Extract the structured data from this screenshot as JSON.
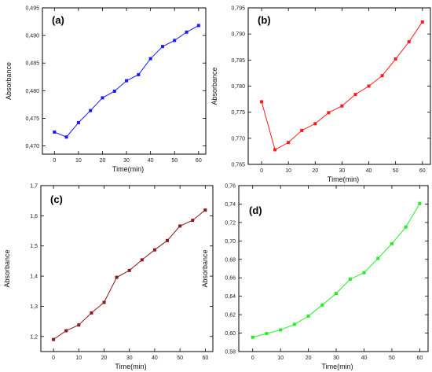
{
  "chart_data": [
    {
      "type": "line",
      "panel_label": "(a)",
      "xlabel": "Time(min)",
      "ylabel": "Absorbance",
      "xlim": [
        -5,
        63
      ],
      "ylim": [
        0.4685,
        0.495
      ],
      "xticks": [
        0,
        10,
        20,
        30,
        40,
        50,
        60
      ],
      "xtick_labels": [
        "0",
        "10",
        "20",
        "30",
        "40",
        "50",
        "60"
      ],
      "yticks": [
        0.47,
        0.475,
        0.48,
        0.485,
        0.49,
        0.495
      ],
      "ytick_labels": [
        "0,470",
        "0,475",
        "0,480",
        "0,485",
        "0,490",
        "0,495"
      ],
      "color": "#1a1aff",
      "series": [
        {
          "x": [
            0,
            5,
            10,
            15,
            20,
            25,
            30,
            35,
            40,
            45,
            50,
            55,
            60
          ],
          "y": [
            0.4725,
            0.4716,
            0.4742,
            0.4764,
            0.4787,
            0.4799,
            0.4818,
            0.4829,
            0.4858,
            0.488,
            0.4891,
            0.4906,
            0.4918
          ]
        }
      ]
    },
    {
      "type": "line",
      "panel_label": "(b)",
      "xlabel": "Time(min)",
      "ylabel": "Absorbance",
      "xlim": [
        -5,
        63
      ],
      "ylim": [
        0.765,
        0.795
      ],
      "xticks": [
        0,
        10,
        20,
        30,
        40,
        50,
        60
      ],
      "xtick_labels": [
        "0",
        "10",
        "20",
        "30",
        "40",
        "50",
        "60"
      ],
      "yticks": [
        0.765,
        0.77,
        0.775,
        0.78,
        0.785,
        0.79,
        0.795
      ],
      "ytick_labels": [
        "0,765",
        "0,770",
        "0,775",
        "0,780",
        "0,785",
        "0,790",
        "0,795"
      ],
      "color": "#ff1a1a",
      "series": [
        {
          "x": [
            0,
            5,
            10,
            15,
            20,
            25,
            30,
            35,
            40,
            45,
            50,
            55,
            60
          ],
          "y": [
            0.777,
            0.7678,
            0.7692,
            0.7715,
            0.7728,
            0.7749,
            0.7762,
            0.7784,
            0.78,
            0.782,
            0.7852,
            0.7885,
            0.7923
          ]
        }
      ]
    },
    {
      "type": "line",
      "panel_label": "(c)",
      "xlabel": "Time(min)",
      "ylabel": "Absorbance",
      "xlim": [
        -5,
        63
      ],
      "ylim": [
        1.15,
        1.7
      ],
      "xticks": [
        0,
        10,
        20,
        30,
        40,
        50,
        60
      ],
      "xtick_labels": [
        "0",
        "10",
        "20",
        "30",
        "40",
        "50",
        "60"
      ],
      "yticks": [
        1.2,
        1.3,
        1.4,
        1.5,
        1.6,
        1.7
      ],
      "ytick_labels": [
        "1,2",
        "1,3",
        "1,4",
        "1,5",
        "1,6",
        "1,7"
      ],
      "color": "#8b1a1a",
      "series": [
        {
          "x": [
            0,
            5,
            10,
            15,
            20,
            25,
            30,
            35,
            40,
            45,
            50,
            55,
            60
          ],
          "y": [
            1.19,
            1.219,
            1.238,
            1.278,
            1.313,
            1.396,
            1.419,
            1.454,
            1.487,
            1.518,
            1.566,
            1.585,
            1.619
          ]
        }
      ]
    },
    {
      "type": "line",
      "panel_label": "(d)",
      "xlabel": "Time(min)",
      "ylabel": "Absorbance",
      "xlim": [
        -5,
        63
      ],
      "ylim": [
        0.58,
        0.76
      ],
      "xticks": [
        0,
        10,
        20,
        30,
        40,
        50,
        60
      ],
      "xtick_labels": [
        "0",
        "10",
        "20",
        "30",
        "40",
        "50",
        "60"
      ],
      "yticks": [
        0.58,
        0.6,
        0.62,
        0.64,
        0.66,
        0.68,
        0.7,
        0.72,
        0.74,
        0.76
      ],
      "ytick_labels": [
        "0,58",
        "0,60",
        "0,62",
        "0,64",
        "0,66",
        "0,68",
        "0,70",
        "0,72",
        "0,74",
        "0,76"
      ],
      "color": "#22ee22",
      "series": [
        {
          "x": [
            0,
            5,
            10,
            15,
            20,
            25,
            30,
            35,
            40,
            45,
            50,
            55,
            60
          ],
          "y": [
            0.5955,
            0.5995,
            0.6035,
            0.6095,
            0.6185,
            0.6305,
            0.643,
            0.6585,
            0.6655,
            0.681,
            0.697,
            0.715,
            0.7405
          ]
        }
      ]
    }
  ]
}
